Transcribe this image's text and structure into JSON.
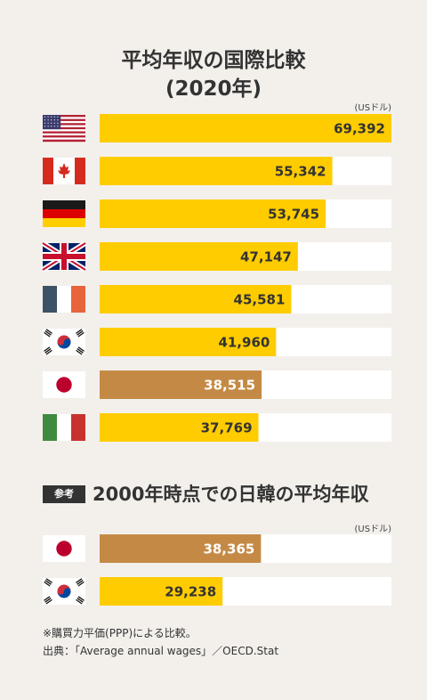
{
  "title_line1": "平均年収の国際比較",
  "title_line2": "(2020年)",
  "unit": "(USドル)",
  "colors": {
    "bar": "#ffcc00",
    "highlight": "#c48a45",
    "track": "#ffffff",
    "value_dark": "#333333",
    "value_light": "#ffffff"
  },
  "chart_data": [
    {
      "type": "bar",
      "orientation": "horizontal",
      "title": "平均年収の国際比較 (2020年)",
      "unit": "USドル",
      "xlim": [
        0,
        69392
      ],
      "categories": [
        "us-flag",
        "canada-flag",
        "germany-flag",
        "uk-flag",
        "france-flag",
        "korea-flag",
        "japan-flag",
        "italy-flag"
      ],
      "values": [
        69392,
        55342,
        53745,
        47147,
        45581,
        41960,
        38515,
        37769
      ],
      "labels": [
        "69,392",
        "55,342",
        "53,745",
        "47,147",
        "45,581",
        "41,960",
        "38,515",
        "37,769"
      ],
      "highlight_index": 6
    },
    {
      "type": "bar",
      "orientation": "horizontal",
      "title": "2000年時点での日韓の平均年収",
      "unit": "USドル",
      "xlim": [
        0,
        69392
      ],
      "categories": [
        "japan-flag",
        "korea-flag"
      ],
      "values": [
        38365,
        29238
      ],
      "labels": [
        "38,365",
        "29,238"
      ],
      "highlight_index": 0
    }
  ],
  "reference": {
    "tag": "参考",
    "title": "2000年時点での日韓の平均年収",
    "unit": "(USドル)"
  },
  "notes": {
    "line1": "※購買力平価(PPP)による比較。",
    "line2": "出典：「Average annual wages」／OECD.Stat"
  }
}
